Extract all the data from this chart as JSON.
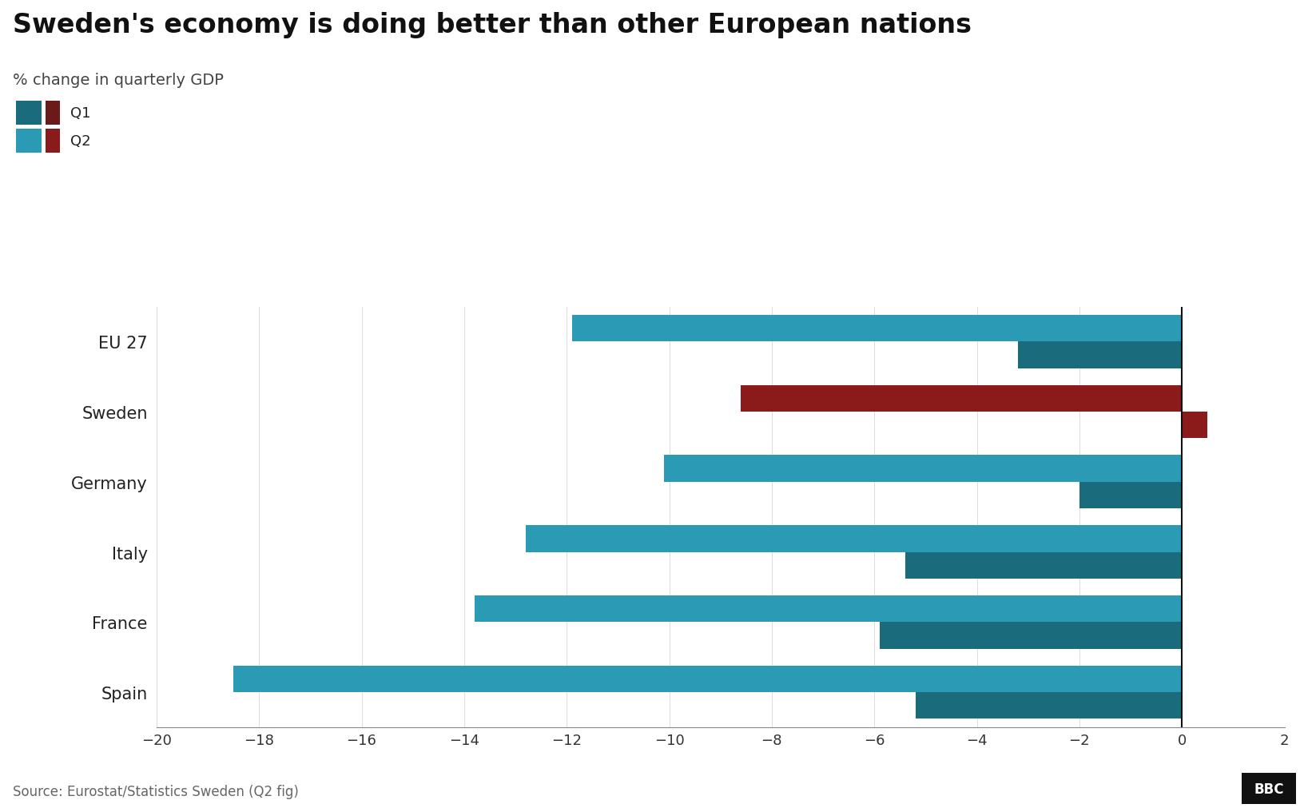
{
  "title": "Sweden's economy is doing better than other European nations",
  "subtitle": "% change in quarterly GDP",
  "source": "Source: Eurostat/Statistics Sweden (Q2 fig)",
  "logo": "BBC",
  "categories": [
    "EU 27",
    "Sweden",
    "Germany",
    "Italy",
    "France",
    "Spain"
  ],
  "q1_values": [
    -3.2,
    0.5,
    -2.0,
    -5.4,
    -5.9,
    -5.2
  ],
  "q2_values": [
    -11.9,
    -8.6,
    -10.1,
    -12.8,
    -13.8,
    -18.5
  ],
  "q1_color_default": "#1a6b7c",
  "q1_color_sweden": "#8b1a1a",
  "q2_color_default": "#2a9ab5",
  "q2_color_sweden": "#8b1a1a",
  "xlim": [
    -20,
    2
  ],
  "xticks": [
    -20,
    -18,
    -16,
    -14,
    -12,
    -10,
    -8,
    -6,
    -4,
    -2,
    0,
    2
  ],
  "bar_height": 0.38,
  "legend_q1_label": "Q1",
  "legend_q2_label": "Q2",
  "legend_q1_color1": "#1a6b7c",
  "legend_q1_color2": "#6b1a1a",
  "legend_q2_color1": "#2a9ab5",
  "legend_q2_color2": "#8b1a1a",
  "bg_color": "#ffffff",
  "title_fontsize": 24,
  "subtitle_fontsize": 14,
  "tick_fontsize": 13,
  "label_fontsize": 15,
  "source_fontsize": 12
}
